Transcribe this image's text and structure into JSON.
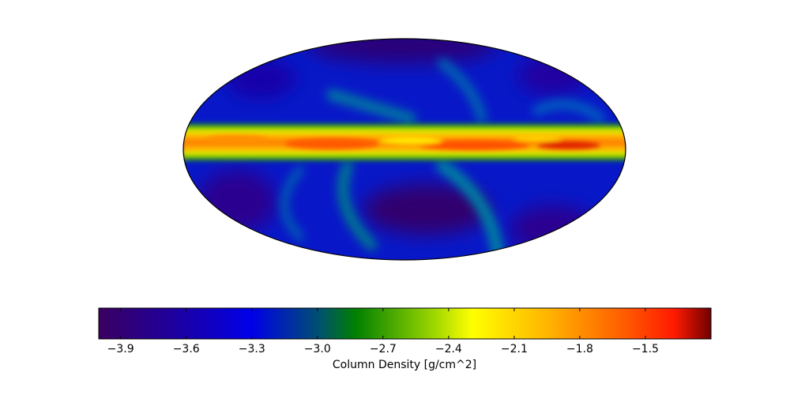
{
  "chart_data": {
    "type": "heatmap",
    "projection": "mollweide",
    "title": "",
    "colorbar": {
      "label": "Column Density [g/cm^2]",
      "ticks": [
        "−3.9",
        "−3.6",
        "−3.3",
        "−3.0",
        "−2.7",
        "−2.4",
        "−2.1",
        "−1.8",
        "−1.5"
      ],
      "tick_values": [
        -3.9,
        -3.6,
        -3.3,
        -3.0,
        -2.7,
        -2.4,
        -2.1,
        -1.8,
        -1.5
      ],
      "range": [
        -4.0,
        -1.2
      ],
      "orientation": "horizontal",
      "placement": "bottom",
      "colormap": [
        "#3b0060",
        "#0000e0",
        "#008000",
        "#ffff00",
        "#ff8000",
        "#ff2000",
        "#800000"
      ]
    },
    "map": {
      "band_value": -1.8,
      "background_value": -3.5,
      "peak_value": -1.3,
      "low_value": -3.9
    }
  }
}
